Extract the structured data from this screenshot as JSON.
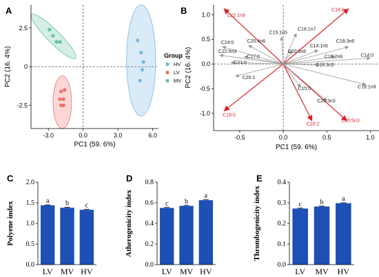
{
  "colors": {
    "HV": "#76b7e0",
    "LV": "#ef6e6a",
    "MV": "#66c2a4",
    "bar": "#1d4fb4",
    "red": "#d9222a",
    "gray": "#9a9a9a"
  },
  "chart_data": [
    {
      "panel": "A",
      "type": "scatter",
      "xlabel": "PC1 (59. 6%)",
      "ylabel": "PC2 (16. 4%)",
      "xticks": [
        "-3.0",
        "0.0",
        "3.0",
        "6.0"
      ],
      "yticks": [
        "2.5",
        "0",
        "-2.5"
      ],
      "xlim": [
        -4.5,
        6.5
      ],
      "ylim": [
        -4.0,
        4.0
      ],
      "legend_title": "Group",
      "legend_position": "right",
      "series": [
        {
          "name": "HV",
          "points": [
            [
              4.7,
              1.7
            ],
            [
              5.0,
              0.9
            ],
            [
              5.2,
              0.3
            ],
            [
              5.1,
              -0.2
            ],
            [
              4.9,
              -0.9
            ]
          ]
        },
        {
          "name": "LV",
          "points": [
            [
              -1.6,
              -1.5
            ],
            [
              -1.9,
              -1.6
            ],
            [
              -1.7,
              -2.1
            ],
            [
              -2.0,
              -2.1
            ],
            [
              -1.7,
              -2.5
            ],
            [
              -1.9,
              -2.5
            ]
          ]
        },
        {
          "name": "MV",
          "points": [
            [
              -2.9,
              2.4
            ],
            [
              -2.6,
              2.0
            ],
            [
              -2.3,
              1.6
            ],
            [
              -2.0,
              1.6
            ]
          ]
        }
      ],
      "ellipses": [
        {
          "name": "HV",
          "cx": 5.0,
          "cy": 0.4,
          "rx": 1.25,
          "ry": 3.6
        },
        {
          "name": "LV",
          "cx": -1.8,
          "cy": -2.3,
          "rx": 0.8,
          "ry": 1.7
        },
        {
          "name": "MV",
          "cx": -2.55,
          "cy": 1.95,
          "rx": 0.55,
          "ry": 2.0,
          "rotate": -45
        }
      ]
    },
    {
      "panel": "B",
      "type": "scatter",
      "subtype": "biplot",
      "xlabel": "PC1 (59. 6%)",
      "ylabel": "PC2 (16. 4%)",
      "xticks": [
        "-0.5",
        "0.0",
        "0.5",
        "1.0"
      ],
      "yticks": [
        "1.0",
        "0.5",
        "0.0",
        "-0.5",
        "-1.0"
      ],
      "xlim": [
        -0.8,
        1.1
      ],
      "ylim": [
        -1.35,
        1.2
      ],
      "vectors": [
        {
          "name": "C22:1n9",
          "x": -0.68,
          "y": 1.12,
          "highlight": true
        },
        {
          "name": "C16:0",
          "x": 0.75,
          "y": 1.12,
          "highlight": true
        },
        {
          "name": "C18:0",
          "x": -0.68,
          "y": -0.95,
          "highlight": true
        },
        {
          "name": "C20:2",
          "x": 0.33,
          "y": -1.15,
          "highlight": true
        },
        {
          "name": "C20:5n3",
          "x": 0.73,
          "y": -1.15,
          "highlight": true
        },
        {
          "name": "C16:1n7",
          "x": 0.15,
          "y": 0.62,
          "highlight": false
        },
        {
          "name": "C15:1n5",
          "x": -0.02,
          "y": 0.55,
          "highlight": false
        },
        {
          "name": "C20:3n6",
          "x": 0.1,
          "y": 0.28,
          "highlight": false
        },
        {
          "name": "C14:1n5",
          "x": 0.4,
          "y": 0.28,
          "highlight": false
        },
        {
          "name": "C18:3n6",
          "x": 0.75,
          "y": 0.35,
          "highlight": false
        },
        {
          "name": "C18:2n6",
          "x": 0.6,
          "y": 0.15,
          "highlight": false
        },
        {
          "name": "C14:0",
          "x": 1.0,
          "y": 0.12,
          "highlight": false
        },
        {
          "name": "C18:3n3",
          "x": 0.42,
          "y": -0.02,
          "highlight": false
        },
        {
          "name": "C18:1n9",
          "x": 0.95,
          "y": -0.42,
          "highlight": false
        },
        {
          "name": "C15:0",
          "x": 0.2,
          "y": -0.47,
          "highlight": false
        },
        {
          "name": "C20:3n3",
          "x": 0.5,
          "y": -0.75,
          "highlight": false
        },
        {
          "name": "C24:0",
          "x": -0.7,
          "y": 0.35,
          "highlight": false
        },
        {
          "name": "C20:4n6",
          "x": -0.4,
          "y": 0.38,
          "highlight": false
        },
        {
          "name": "C22:6n3",
          "x": -0.73,
          "y": 0.18,
          "highlight": false
        },
        {
          "name": "C17:0",
          "x": -0.45,
          "y": 0.15,
          "highlight": false
        },
        {
          "name": "C21:0",
          "x": -0.6,
          "y": 0.03,
          "highlight": false
        },
        {
          "name": "C20:1",
          "x": -0.55,
          "y": -0.25,
          "highlight": false
        }
      ]
    },
    {
      "panel": "C",
      "type": "bar",
      "categories": [
        "LV",
        "MV",
        "HV"
      ],
      "values": [
        1.44,
        1.38,
        1.33
      ],
      "errors": [
        0.01,
        0.01,
        0.01
      ],
      "letters": [
        "a",
        "b",
        "c"
      ],
      "ylabel": "Polyene index",
      "ylim": [
        0.0,
        2.0
      ],
      "yticks": [
        "0.0",
        "0.5",
        "1.0",
        "1.5",
        "2.0"
      ],
      "ytick_values": [
        0.0,
        0.5,
        1.0,
        1.5,
        2.0
      ]
    },
    {
      "panel": "D",
      "type": "bar",
      "categories": [
        "LV",
        "MV",
        "HV"
      ],
      "values": [
        0.55,
        0.57,
        0.625
      ],
      "errors": [
        0.005,
        0.005,
        0.005
      ],
      "letters": [
        "c",
        "b",
        "a"
      ],
      "ylabel": "Atherogenicity index",
      "ylim": [
        0.0,
        0.8
      ],
      "yticks": [
        "0.0",
        "0.2",
        "0.4",
        "0.6",
        "0.8"
      ],
      "ytick_values": [
        0.0,
        0.2,
        0.4,
        0.6,
        0.8
      ]
    },
    {
      "panel": "E",
      "type": "bar",
      "categories": [
        "LV",
        "MV",
        "HV"
      ],
      "values": [
        0.272,
        0.282,
        0.298
      ],
      "errors": [
        0.002,
        0.002,
        0.002
      ],
      "letters": [
        "c",
        "b",
        "a"
      ],
      "ylabel": "Thrombogenicity index",
      "ylim": [
        0.0,
        0.4
      ],
      "yticks": [
        "0.0",
        "0.1",
        "0.2",
        "0.3",
        "0.4"
      ],
      "ytick_values": [
        0.0,
        0.1,
        0.2,
        0.3,
        0.4
      ]
    }
  ]
}
